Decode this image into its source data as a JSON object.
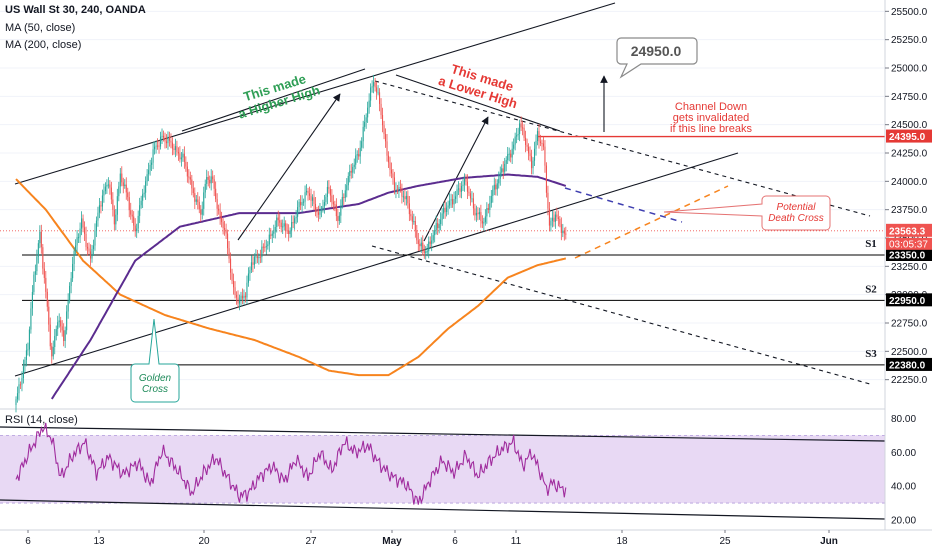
{
  "header": {
    "symbol": "US Wall St 30, 240, OANDA",
    "ma50": "MA (50, close)",
    "ma200": "MA (200, close)",
    "rsi": "RSI (14, close)"
  },
  "colors": {
    "up": "#26a69a",
    "down": "#ef5350",
    "ma50": "#5b2c8f",
    "ma200": "#f7841e",
    "support": "#000000",
    "red_line": "#e53935",
    "rsi_line": "#a02c9e",
    "rsi_band": "#e8d9f4",
    "green_text": "#2e9e55",
    "red_text": "#e53935"
  },
  "annotations": {
    "higher_high": [
      "This made",
      "a Higher High"
    ],
    "lower_high": [
      "This made",
      "a Lower High"
    ],
    "channel_down": [
      "Channel Down",
      "gets invalidated",
      "if this line breaks"
    ],
    "target": "24950.0",
    "death_cross": [
      "Potential",
      "Death Cross"
    ],
    "golden_cross": [
      "Golden",
      "Cross"
    ],
    "s1": "S1",
    "s2": "S2",
    "s3": "S3"
  },
  "chart_data": [
    {
      "type": "candlestick",
      "title": "US Wall St 30, 240, OANDA",
      "ylim": [
        22000,
        25600
      ],
      "y_ticks": [
        25500,
        25250,
        25000,
        24750,
        24500,
        24250,
        24000,
        23750,
        23500,
        23250,
        23000,
        22750,
        22500,
        22250
      ],
      "y_tick_labels": [
        "25500.0",
        "25250.0",
        "25000.0",
        "24750.0",
        "24500.0",
        "24250.0",
        "24000.0",
        "23750.0",
        "23500.0",
        "23250.0",
        "23000.0",
        "22750.0",
        "22500.0",
        "22250.0"
      ],
      "x_tick_labels": [
        "6",
        "13",
        "20",
        "27",
        "May",
        "6",
        "11",
        "18",
        "25",
        "Jun"
      ],
      "price_labels": [
        {
          "value": 24395.0,
          "text": "24395.0",
          "color": "#e53935"
        },
        {
          "value": 23563.3,
          "text": "23563.3",
          "color": "#ef5350"
        },
        {
          "value": 23350.0,
          "text": "23350.0",
          "color": "#000000"
        },
        {
          "value": 22950.0,
          "text": "22950.0",
          "color": "#000000"
        },
        {
          "value": 22380.0,
          "text": "22380.0",
          "color": "#000000"
        }
      ],
      "countdown": "03:05:37",
      "supports": [
        {
          "name": "S1",
          "value": 23350
        },
        {
          "name": "S2",
          "value": 22950
        },
        {
          "name": "S3",
          "value": 22380
        }
      ],
      "resistance": 24395,
      "target": 24950,
      "waypoints": [
        [
          0,
          22050
        ],
        [
          4,
          22300
        ],
        [
          8,
          22550
        ],
        [
          12,
          23150
        ],
        [
          16,
          23550
        ],
        [
          20,
          23000
        ],
        [
          24,
          22450
        ],
        [
          28,
          22800
        ],
        [
          32,
          22600
        ],
        [
          38,
          23300
        ],
        [
          44,
          23650
        ],
        [
          50,
          23300
        ],
        [
          56,
          23800
        ],
        [
          62,
          24000
        ],
        [
          66,
          23650
        ],
        [
          70,
          24050
        ],
        [
          75,
          23850
        ],
        [
          80,
          23550
        ],
        [
          86,
          23950
        ],
        [
          92,
          24250
        ],
        [
          98,
          24400
        ],
        [
          106,
          24300
        ],
        [
          112,
          24200
        ],
        [
          118,
          23950
        ],
        [
          124,
          23700
        ],
        [
          128,
          24050
        ],
        [
          132,
          24000
        ],
        [
          136,
          23700
        ],
        [
          140,
          23600
        ],
        [
          146,
          23020
        ],
        [
          150,
          22950
        ],
        [
          154,
          23000
        ],
        [
          158,
          23300
        ],
        [
          164,
          23350
        ],
        [
          170,
          23500
        ],
        [
          176,
          23650
        ],
        [
          184,
          23550
        ],
        [
          190,
          23800
        ],
        [
          196,
          23900
        ],
        [
          204,
          23700
        ],
        [
          210,
          23950
        ],
        [
          216,
          23650
        ],
        [
          222,
          24000
        ],
        [
          230,
          24250
        ],
        [
          236,
          24650
        ],
        [
          240,
          24900
        ],
        [
          244,
          24700
        ],
        [
          248,
          24300
        ],
        [
          254,
          23950
        ],
        [
          262,
          23850
        ],
        [
          270,
          23450
        ],
        [
          276,
          23380
        ],
        [
          282,
          23600
        ],
        [
          288,
          23750
        ],
        [
          296,
          23900
        ],
        [
          302,
          24000
        ],
        [
          308,
          23720
        ],
        [
          314,
          23650
        ],
        [
          320,
          23900
        ],
        [
          326,
          24100
        ],
        [
          332,
          24250
        ],
        [
          338,
          24500
        ],
        [
          342,
          24350
        ],
        [
          346,
          24150
        ],
        [
          350,
          24400
        ],
        [
          354,
          24300
        ],
        [
          356,
          23950
        ],
        [
          358,
          23600
        ],
        [
          362,
          23700
        ],
        [
          366,
          23600
        ],
        [
          369,
          23500
        ]
      ],
      "ma50": [
        [
          24,
          22080
        ],
        [
          50,
          22600
        ],
        [
          80,
          23300
        ],
        [
          110,
          23600
        ],
        [
          150,
          23720
        ],
        [
          190,
          23720
        ],
        [
          230,
          23800
        ],
        [
          250,
          23900
        ],
        [
          270,
          23960
        ],
        [
          300,
          24030
        ],
        [
          330,
          24060
        ],
        [
          350,
          24040
        ],
        [
          369,
          23960
        ]
      ],
      "ma200": [
        [
          0,
          24020
        ],
        [
          20,
          23750
        ],
        [
          45,
          23300
        ],
        [
          70,
          23000
        ],
        [
          100,
          22820
        ],
        [
          130,
          22700
        ],
        [
          160,
          22600
        ],
        [
          190,
          22450
        ],
        [
          210,
          22330
        ],
        [
          230,
          22290
        ],
        [
          250,
          22290
        ],
        [
          270,
          22450
        ],
        [
          290,
          22700
        ],
        [
          310,
          22900
        ],
        [
          330,
          23150
        ],
        [
          350,
          23260
        ],
        [
          369,
          23320
        ]
      ],
      "rsi": {
        "title": "RSI (14, close)",
        "ylim": [
          20,
          85
        ],
        "band": [
          30,
          70
        ],
        "y_tick_labels": [
          "80.00",
          "60.00",
          "40.00",
          "20.00"
        ],
        "waypoints": [
          [
            0,
            44
          ],
          [
            10,
            62
          ],
          [
            18,
            75
          ],
          [
            24,
            68
          ],
          [
            30,
            45
          ],
          [
            38,
            58
          ],
          [
            46,
            66
          ],
          [
            54,
            48
          ],
          [
            62,
            57
          ],
          [
            72,
            47
          ],
          [
            82,
            54
          ],
          [
            90,
            41
          ],
          [
            98,
            61
          ],
          [
            108,
            50
          ],
          [
            118,
            36
          ],
          [
            126,
            48
          ],
          [
            134,
            57
          ],
          [
            142,
            45
          ],
          [
            150,
            34
          ],
          [
            156,
            36
          ],
          [
            164,
            46
          ],
          [
            172,
            52
          ],
          [
            180,
            43
          ],
          [
            188,
            56
          ],
          [
            196,
            45
          ],
          [
            204,
            60
          ],
          [
            212,
            49
          ],
          [
            220,
            66
          ],
          [
            228,
            60
          ],
          [
            236,
            64
          ],
          [
            244,
            53
          ],
          [
            252,
            46
          ],
          [
            262,
            41
          ],
          [
            270,
            30
          ],
          [
            278,
            44
          ],
          [
            286,
            55
          ],
          [
            294,
            48
          ],
          [
            302,
            58
          ],
          [
            310,
            46
          ],
          [
            318,
            55
          ],
          [
            326,
            62
          ],
          [
            334,
            66
          ],
          [
            340,
            52
          ],
          [
            346,
            60
          ],
          [
            352,
            48
          ],
          [
            356,
            38
          ],
          [
            360,
            42
          ],
          [
            365,
            39
          ],
          [
            369,
            38
          ]
        ]
      }
    }
  ]
}
